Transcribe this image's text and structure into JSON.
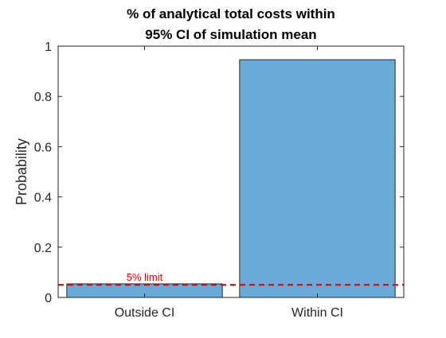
{
  "chart_data": {
    "type": "bar",
    "title": [
      "% of analytical total costs within",
      "95% CI of simulation mean"
    ],
    "xlabel": "",
    "ylabel": "Probability",
    "categories": [
      "Outside CI",
      "Within CI"
    ],
    "values": [
      0.054,
      0.946
    ],
    "ylim": [
      0,
      1
    ],
    "yticks": [
      0,
      0.2,
      0.4,
      0.6,
      0.8,
      1
    ],
    "ytick_labels": [
      "0",
      "0.2",
      "0.4",
      "0.6",
      "0.8",
      "1"
    ],
    "grid": false,
    "bar_color": "#68abd8",
    "reference_line": {
      "value": 0.05,
      "label": "5% limit",
      "color": "#e00000",
      "style": "dashed"
    }
  }
}
